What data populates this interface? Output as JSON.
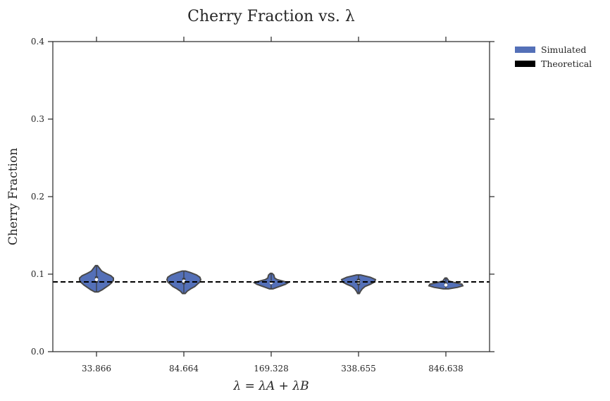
{
  "chart_data": {
    "type": "violin",
    "title": "Cherry Fraction vs. λ",
    "xlabel": "λ = λA + λB",
    "ylabel": "Cherry Fraction",
    "categories": [
      "33.866",
      "84.664",
      "169.328",
      "338.655",
      "846.638"
    ],
    "ylim": [
      0.0,
      0.4
    ],
    "yticks": [
      "0.0",
      "0.1",
      "0.2",
      "0.3",
      "0.4"
    ],
    "series": [
      {
        "name": "Simulated",
        "color": "#5470b8",
        "violins": [
          {
            "min": 0.077,
            "max": 0.111,
            "median": 0.093,
            "q1": 0.089,
            "q3": 0.097,
            "profile": [
              [
                0.077,
                0.1
              ],
              [
                0.08,
                0.35
              ],
              [
                0.083,
                0.55
              ],
              [
                0.086,
                0.75
              ],
              [
                0.089,
                0.9
              ],
              [
                0.092,
                1.0
              ],
              [
                0.095,
                1.0
              ],
              [
                0.098,
                0.85
              ],
              [
                0.101,
                0.55
              ],
              [
                0.104,
                0.3
              ],
              [
                0.107,
                0.2
              ],
              [
                0.111,
                0.06
              ]
            ]
          },
          {
            "min": 0.075,
            "max": 0.104,
            "median": 0.091,
            "q1": 0.087,
            "q3": 0.095,
            "profile": [
              [
                0.075,
                0.08
              ],
              [
                0.078,
                0.2
              ],
              [
                0.081,
                0.4
              ],
              [
                0.084,
                0.65
              ],
              [
                0.087,
                0.8
              ],
              [
                0.09,
                0.95
              ],
              [
                0.093,
                1.0
              ],
              [
                0.096,
                0.95
              ],
              [
                0.099,
                0.75
              ],
              [
                0.102,
                0.4
              ],
              [
                0.104,
                0.1
              ]
            ]
          },
          {
            "min": 0.081,
            "max": 0.101,
            "median": 0.089,
            "q1": 0.087,
            "q3": 0.091,
            "profile": [
              [
                0.081,
                0.1
              ],
              [
                0.083,
                0.35
              ],
              [
                0.085,
                0.6
              ],
              [
                0.087,
                0.85
              ],
              [
                0.089,
                1.0
              ],
              [
                0.091,
                0.7
              ],
              [
                0.093,
                0.35
              ],
              [
                0.095,
                0.2
              ],
              [
                0.097,
                0.18
              ],
              [
                0.099,
                0.15
              ],
              [
                0.101,
                0.05
              ]
            ]
          },
          {
            "min": 0.075,
            "max": 0.099,
            "median": 0.09,
            "q1": 0.086,
            "q3": 0.094,
            "profile": [
              [
                0.075,
                0.05
              ],
              [
                0.078,
                0.12
              ],
              [
                0.081,
                0.22
              ],
              [
                0.084,
                0.38
              ],
              [
                0.087,
                0.7
              ],
              [
                0.09,
                0.95
              ],
              [
                0.093,
                1.0
              ],
              [
                0.096,
                0.7
              ],
              [
                0.099,
                0.12
              ]
            ]
          },
          {
            "min": 0.081,
            "max": 0.095,
            "median": 0.086,
            "q1": 0.084,
            "q3": 0.089,
            "profile": [
              [
                0.081,
                0.15
              ],
              [
                0.083,
                0.7
              ],
              [
                0.085,
                1.0
              ],
              [
                0.087,
                0.95
              ],
              [
                0.089,
                0.55
              ],
              [
                0.091,
                0.18
              ],
              [
                0.093,
                0.12
              ],
              [
                0.095,
                0.05
              ]
            ]
          }
        ]
      },
      {
        "name": "Theoretical",
        "color": "#000000",
        "style": "dashed",
        "value": 0.09
      }
    ],
    "legend_placement": "outside-top-right",
    "grid": false
  }
}
